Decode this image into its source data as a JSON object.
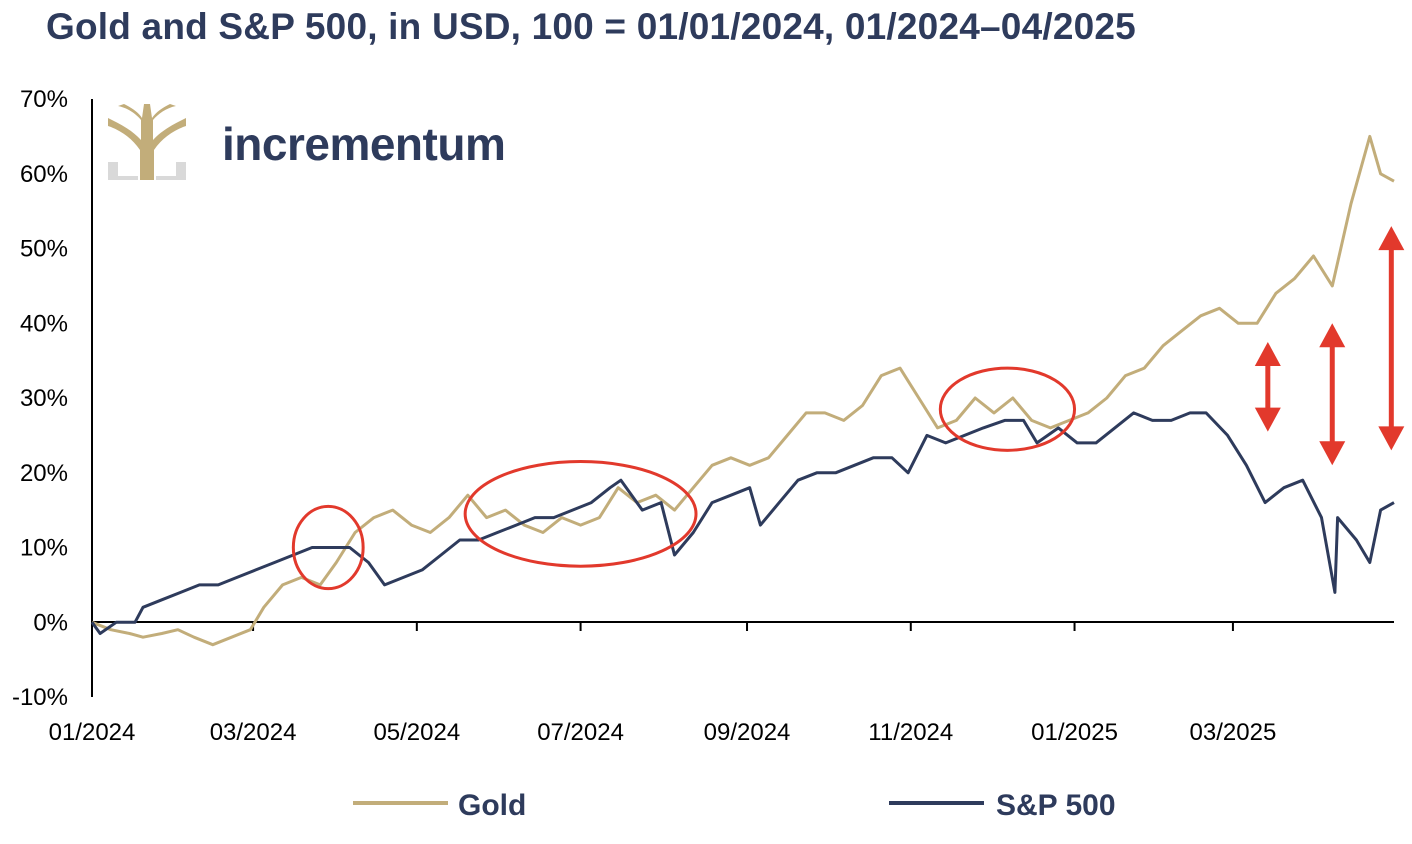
{
  "chart_data": {
    "type": "line",
    "title": "Gold and S&P 500, in USD, 100 = 01/01/2024, 01/2024–04/2025",
    "brand": "incrementum",
    "xlabel": "",
    "ylabel": "",
    "ylim": [
      -10,
      70
    ],
    "y_ticks": [
      "70%",
      "60%",
      "50%",
      "40%",
      "30%",
      "20%",
      "10%",
      "0%",
      "-10%"
    ],
    "x_tick_labels": [
      "01/2024",
      "03/2024",
      "05/2024",
      "07/2024",
      "09/2024",
      "11/2024",
      "01/2025",
      "03/2025"
    ],
    "x_range": [
      "2024-01-01",
      "2025-04-30"
    ],
    "legend_position": "bottom",
    "grid": false,
    "colors": {
      "Gold": "#c2ad7a",
      "S&P 500": "#2e3b5c",
      "annotation": "#e2392c",
      "title": "#2e3b5c"
    },
    "series": [
      {
        "name": "Gold",
        "color": "#c2ad7a",
        "points": [
          [
            "2024-01-01",
            0
          ],
          [
            "2024-01-08",
            -1
          ],
          [
            "2024-01-15",
            -1.5
          ],
          [
            "2024-01-20",
            -2
          ],
          [
            "2024-01-27",
            -1.5
          ],
          [
            "2024-02-02",
            -1
          ],
          [
            "2024-02-08",
            -2
          ],
          [
            "2024-02-15",
            -3
          ],
          [
            "2024-02-22",
            -2
          ],
          [
            "2024-02-29",
            -1
          ],
          [
            "2024-03-05",
            2
          ],
          [
            "2024-03-12",
            5
          ],
          [
            "2024-03-19",
            6
          ],
          [
            "2024-03-26",
            5
          ],
          [
            "2024-04-01",
            8
          ],
          [
            "2024-04-08",
            12
          ],
          [
            "2024-04-15",
            14
          ],
          [
            "2024-04-22",
            15
          ],
          [
            "2024-04-29",
            13
          ],
          [
            "2024-05-06",
            12
          ],
          [
            "2024-05-13",
            14
          ],
          [
            "2024-05-20",
            17
          ],
          [
            "2024-05-27",
            14
          ],
          [
            "2024-06-03",
            15
          ],
          [
            "2024-06-10",
            13
          ],
          [
            "2024-06-17",
            12
          ],
          [
            "2024-06-24",
            14
          ],
          [
            "2024-07-01",
            13
          ],
          [
            "2024-07-08",
            14
          ],
          [
            "2024-07-15",
            18
          ],
          [
            "2024-07-22",
            16
          ],
          [
            "2024-07-29",
            17
          ],
          [
            "2024-08-05",
            15
          ],
          [
            "2024-08-12",
            18
          ],
          [
            "2024-08-19",
            21
          ],
          [
            "2024-08-26",
            22
          ],
          [
            "2024-09-02",
            21
          ],
          [
            "2024-09-09",
            22
          ],
          [
            "2024-09-16",
            25
          ],
          [
            "2024-09-23",
            28
          ],
          [
            "2024-09-30",
            28
          ],
          [
            "2024-10-07",
            27
          ],
          [
            "2024-10-14",
            29
          ],
          [
            "2024-10-21",
            33
          ],
          [
            "2024-10-28",
            34
          ],
          [
            "2024-11-04",
            30
          ],
          [
            "2024-11-11",
            26
          ],
          [
            "2024-11-18",
            27
          ],
          [
            "2024-11-25",
            30
          ],
          [
            "2024-12-02",
            28
          ],
          [
            "2024-12-09",
            30
          ],
          [
            "2024-12-16",
            27
          ],
          [
            "2024-12-23",
            26
          ],
          [
            "2024-12-30",
            27
          ],
          [
            "2025-01-06",
            28
          ],
          [
            "2025-01-13",
            30
          ],
          [
            "2025-01-20",
            33
          ],
          [
            "2025-01-27",
            34
          ],
          [
            "2025-02-03",
            37
          ],
          [
            "2025-02-10",
            39
          ],
          [
            "2025-02-17",
            41
          ],
          [
            "2025-02-24",
            42
          ],
          [
            "2025-03-03",
            40
          ],
          [
            "2025-03-10",
            40
          ],
          [
            "2025-03-17",
            44
          ],
          [
            "2025-03-24",
            46
          ],
          [
            "2025-03-31",
            49
          ],
          [
            "2025-04-07",
            45
          ],
          [
            "2025-04-14",
            56
          ],
          [
            "2025-04-21",
            65
          ],
          [
            "2025-04-25",
            60
          ],
          [
            "2025-04-30",
            59
          ]
        ]
      },
      {
        "name": "S&P 500",
        "color": "#2e3b5c",
        "points": [
          [
            "2024-01-01",
            0
          ],
          [
            "2024-01-04",
            -1.5
          ],
          [
            "2024-01-10",
            0
          ],
          [
            "2024-01-17",
            0
          ],
          [
            "2024-01-20",
            2
          ],
          [
            "2024-01-27",
            3
          ],
          [
            "2024-02-03",
            4
          ],
          [
            "2024-02-10",
            5
          ],
          [
            "2024-02-17",
            5
          ],
          [
            "2024-02-24",
            6
          ],
          [
            "2024-03-02",
            7
          ],
          [
            "2024-03-09",
            8
          ],
          [
            "2024-03-16",
            9
          ],
          [
            "2024-03-23",
            10
          ],
          [
            "2024-03-30",
            10
          ],
          [
            "2024-04-06",
            10
          ],
          [
            "2024-04-13",
            8
          ],
          [
            "2024-04-19",
            5
          ],
          [
            "2024-04-26",
            6
          ],
          [
            "2024-05-03",
            7
          ],
          [
            "2024-05-10",
            9
          ],
          [
            "2024-05-17",
            11
          ],
          [
            "2024-05-24",
            11
          ],
          [
            "2024-05-31",
            12
          ],
          [
            "2024-06-07",
            13
          ],
          [
            "2024-06-14",
            14
          ],
          [
            "2024-06-21",
            14
          ],
          [
            "2024-06-28",
            15
          ],
          [
            "2024-07-05",
            16
          ],
          [
            "2024-07-12",
            18
          ],
          [
            "2024-07-16",
            19
          ],
          [
            "2024-07-24",
            15
          ],
          [
            "2024-07-31",
            16
          ],
          [
            "2024-08-05",
            9
          ],
          [
            "2024-08-12",
            12
          ],
          [
            "2024-08-19",
            16
          ],
          [
            "2024-08-26",
            17
          ],
          [
            "2024-09-02",
            18
          ],
          [
            "2024-09-06",
            13
          ],
          [
            "2024-09-13",
            16
          ],
          [
            "2024-09-20",
            19
          ],
          [
            "2024-09-27",
            20
          ],
          [
            "2024-10-04",
            20
          ],
          [
            "2024-10-11",
            21
          ],
          [
            "2024-10-18",
            22
          ],
          [
            "2024-10-25",
            22
          ],
          [
            "2024-10-31",
            20
          ],
          [
            "2024-11-07",
            25
          ],
          [
            "2024-11-14",
            24
          ],
          [
            "2024-11-21",
            25
          ],
          [
            "2024-11-28",
            26
          ],
          [
            "2024-12-06",
            27
          ],
          [
            "2024-12-13",
            27
          ],
          [
            "2024-12-18",
            24
          ],
          [
            "2024-12-26",
            26
          ],
          [
            "2025-01-02",
            24
          ],
          [
            "2025-01-09",
            24
          ],
          [
            "2025-01-16",
            26
          ],
          [
            "2025-01-23",
            28
          ],
          [
            "2025-01-30",
            27
          ],
          [
            "2025-02-06",
            27
          ],
          [
            "2025-02-13",
            28
          ],
          [
            "2025-02-19",
            28
          ],
          [
            "2025-02-27",
            25
          ],
          [
            "2025-03-06",
            21
          ],
          [
            "2025-03-13",
            16
          ],
          [
            "2025-03-20",
            18
          ],
          [
            "2025-03-27",
            19
          ],
          [
            "2025-04-03",
            14
          ],
          [
            "2025-04-08",
            4
          ],
          [
            "2025-04-09",
            14
          ],
          [
            "2025-04-16",
            11
          ],
          [
            "2025-04-21",
            8
          ],
          [
            "2025-04-25",
            15
          ],
          [
            "2025-04-30",
            16
          ]
        ]
      }
    ],
    "annotations": {
      "ellipses": [
        {
          "center": [
            "2024-03-29",
            10
          ],
          "rx_days": 13,
          "ry": 5.5
        },
        {
          "center": [
            "2024-07-01",
            14.5
          ],
          "rx_days": 43,
          "ry": 7
        },
        {
          "center": [
            "2024-12-07",
            28.5
          ],
          "rx_days": 25,
          "ry": 5.5
        }
      ],
      "double_arrows": [
        {
          "date": "2025-03-14",
          "from": 25.5,
          "to": 37.5
        },
        {
          "date": "2025-04-07",
          "from": 21,
          "to": 40
        },
        {
          "date": "2025-04-29",
          "from": 23,
          "to": 53
        }
      ]
    }
  }
}
